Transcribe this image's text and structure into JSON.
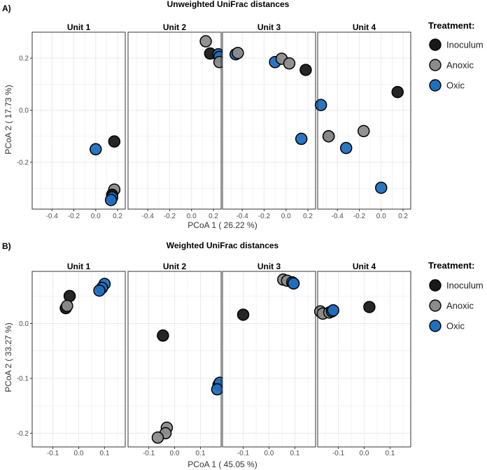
{
  "colors": {
    "inoculum": "#1a1a1a",
    "anoxic": "#8c8c8c",
    "oxic": "#1f6fc0",
    "grid": "#ebebeb",
    "tick": "#4d4d4d"
  },
  "legend": {
    "title": "Treatment:",
    "items": [
      {
        "label": "Inoculum",
        "key": "inoculum"
      },
      {
        "label": "Anoxic",
        "key": "anoxic"
      },
      {
        "label": "Oxic",
        "key": "oxic"
      }
    ]
  },
  "chart_data": [
    {
      "type": "scatter",
      "panel_label": "A)",
      "title": "Unweighted UniFrac distances",
      "xlabel": "PCoA 1 ( 26.22 %)",
      "ylabel": "PCoA 2 ( 17.73 %)",
      "xlim": [
        -0.58,
        0.27
      ],
      "ylim": [
        -0.38,
        0.3
      ],
      "xticks": [
        -0.4,
        -0.2,
        0.0,
        0.2
      ],
      "xtick_labels": [
        "-0.4",
        "-0.2",
        "0.0",
        "0.2"
      ],
      "yticks": [
        0.2,
        0.0,
        -0.2
      ],
      "ytick_labels": [
        "0.2",
        "0.0",
        "-0.2"
      ],
      "facets": [
        {
          "title": "Unit 1",
          "points": [
            {
              "x": 0.0,
              "y": -0.15,
              "t": "oxic"
            },
            {
              "x": 0.17,
              "y": -0.12,
              "t": "inoculum"
            },
            {
              "x": 0.17,
              "y": -0.305,
              "t": "anoxic"
            },
            {
              "x": 0.15,
              "y": -0.325,
              "t": "inoculum"
            },
            {
              "x": 0.15,
              "y": -0.335,
              "t": "oxic"
            },
            {
              "x": 0.14,
              "y": -0.345,
              "t": "oxic"
            }
          ]
        },
        {
          "title": "Unit 2",
          "points": [
            {
              "x": 0.13,
              "y": 0.265,
              "t": "anoxic"
            },
            {
              "x": 0.17,
              "y": 0.218,
              "t": "inoculum"
            },
            {
              "x": 0.245,
              "y": 0.215,
              "t": "oxic"
            },
            {
              "x": 0.255,
              "y": 0.205,
              "t": "oxic"
            },
            {
              "x": 0.255,
              "y": 0.185,
              "t": "anoxic"
            }
          ]
        },
        {
          "title": "Unit 3",
          "points": [
            {
              "x": -0.46,
              "y": 0.215,
              "t": "oxic"
            },
            {
              "x": -0.44,
              "y": 0.22,
              "t": "anoxic"
            },
            {
              "x": -0.1,
              "y": 0.185,
              "t": "oxic"
            },
            {
              "x": -0.04,
              "y": 0.198,
              "t": "anoxic"
            },
            {
              "x": 0.03,
              "y": 0.18,
              "t": "anoxic"
            },
            {
              "x": 0.18,
              "y": 0.155,
              "t": "inoculum"
            },
            {
              "x": 0.14,
              "y": -0.11,
              "t": "oxic"
            }
          ]
        },
        {
          "title": "Unit 4",
          "points": [
            {
              "x": -0.55,
              "y": 0.02,
              "t": "oxic"
            },
            {
              "x": 0.15,
              "y": 0.07,
              "t": "inoculum"
            },
            {
              "x": -0.48,
              "y": -0.1,
              "t": "inoculum"
            },
            {
              "x": -0.48,
              "y": -0.1,
              "t": "anoxic"
            },
            {
              "x": -0.16,
              "y": -0.08,
              "t": "anoxic"
            },
            {
              "x": -0.32,
              "y": -0.145,
              "t": "oxic"
            },
            {
              "x": 0.0,
              "y": -0.298,
              "t": "oxic"
            }
          ]
        }
      ]
    },
    {
      "type": "scatter",
      "panel_label": "B)",
      "title": "Weighted UniFrac distances",
      "xlabel": "PCoA 1 ( 45.05 %)",
      "ylabel": "PCoA 2 ( 33.27 %)",
      "xlim": [
        -0.18,
        0.18
      ],
      "ylim": [
        -0.225,
        0.095
      ],
      "xticks": [
        -0.1,
        0.0,
        0.1
      ],
      "xtick_labels": [
        "-0.1",
        "0.0",
        "0.1"
      ],
      "yticks": [
        0.0,
        -0.1,
        -0.2
      ],
      "ytick_labels": [
        "0.0",
        "-0.1",
        "-0.2"
      ],
      "facets": [
        {
          "title": "Unit 1",
          "points": [
            {
              "x": -0.035,
              "y": 0.05,
              "t": "inoculum"
            },
            {
              "x": -0.05,
              "y": 0.028,
              "t": "inoculum"
            },
            {
              "x": -0.045,
              "y": 0.032,
              "t": "anoxic"
            },
            {
              "x": 0.1,
              "y": 0.072,
              "t": "oxic"
            },
            {
              "x": 0.09,
              "y": 0.065,
              "t": "oxic"
            },
            {
              "x": 0.08,
              "y": 0.06,
              "t": "oxic"
            }
          ]
        },
        {
          "title": "Unit 2",
          "points": [
            {
              "x": -0.045,
              "y": -0.022,
              "t": "inoculum"
            },
            {
              "x": 0.17,
              "y": -0.112,
              "t": "oxic"
            },
            {
              "x": 0.175,
              "y": -0.108,
              "t": "oxic"
            },
            {
              "x": 0.165,
              "y": -0.12,
              "t": "oxic"
            },
            {
              "x": -0.03,
              "y": -0.19,
              "t": "anoxic"
            },
            {
              "x": -0.035,
              "y": -0.2,
              "t": "anoxic"
            },
            {
              "x": -0.065,
              "y": -0.208,
              "t": "anoxic"
            }
          ]
        },
        {
          "title": "Unit 3",
          "points": [
            {
              "x": -0.1,
              "y": 0.016,
              "t": "inoculum"
            },
            {
              "x": 0.055,
              "y": 0.08,
              "t": "anoxic"
            },
            {
              "x": 0.07,
              "y": 0.078,
              "t": "anoxic"
            },
            {
              "x": 0.09,
              "y": 0.075,
              "t": "oxic"
            },
            {
              "x": 0.095,
              "y": 0.073,
              "t": "oxic"
            }
          ]
        },
        {
          "title": "Unit 4",
          "points": [
            {
              "x": -0.17,
              "y": 0.022,
              "t": "anoxic"
            },
            {
              "x": -0.16,
              "y": 0.018,
              "t": "anoxic"
            },
            {
              "x": -0.135,
              "y": 0.02,
              "t": "anoxic"
            },
            {
              "x": -0.125,
              "y": 0.022,
              "t": "oxic"
            },
            {
              "x": -0.12,
              "y": 0.024,
              "t": "oxic"
            },
            {
              "x": 0.02,
              "y": 0.03,
              "t": "inoculum"
            }
          ]
        }
      ]
    }
  ]
}
